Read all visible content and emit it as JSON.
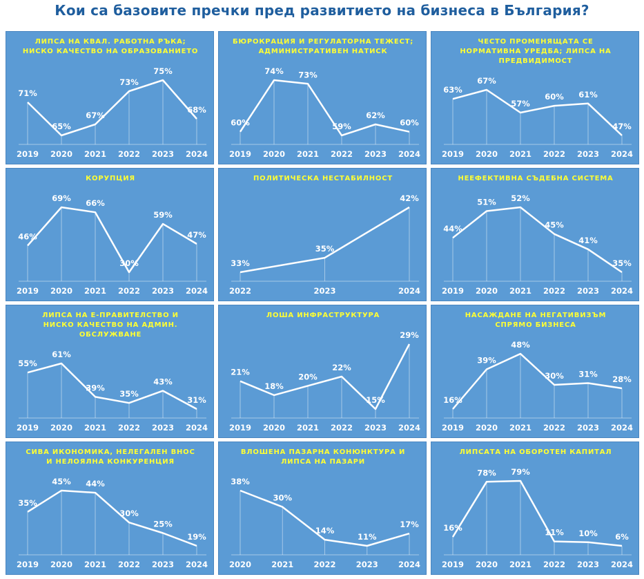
{
  "title": "Кои са базовите пречки пред развитието на бизнеса в България?",
  "colors": {
    "title": "#1f5e9e",
    "panel": "#5b9bd5",
    "chart_title": "#ffff33",
    "line": "#ffffff"
  },
  "chart_data": [
    {
      "type": "line",
      "title": "ЛИПСА НА КВАЛ. РАБОТНА РЪКА; НИСКО КАЧЕСТВО НА ОБРАЗОВАНИЕТО",
      "categories": [
        "2019",
        "2020",
        "2021",
        "2022",
        "2023",
        "2024"
      ],
      "values": [
        71,
        65,
        67,
        73,
        75,
        68
      ],
      "unit": "%"
    },
    {
      "type": "line",
      "title": "БЮРОКРАЦИЯ И РЕГУЛАТОРНА ТЕЖЕСТ; АДМИНИСТРАТИВЕН НАТИСК",
      "categories": [
        "2019",
        "2020",
        "2021",
        "2022",
        "2023",
        "2024"
      ],
      "values": [
        60,
        74,
        73,
        59,
        62,
        60
      ],
      "unit": "%"
    },
    {
      "type": "line",
      "title": "ЧЕСТО ПРОМЕНЯЩАТА СЕ НОРМАТИВНА УРЕДБА; ЛИПСА НА ПРЕДВИДИМОСТ",
      "categories": [
        "2019",
        "2020",
        "2021",
        "2022",
        "2023",
        "2024"
      ],
      "values": [
        63,
        67,
        57,
        60,
        61,
        47
      ],
      "unit": "%"
    },
    {
      "type": "line",
      "title": "КОРУПЦИЯ",
      "categories": [
        "2019",
        "2020",
        "2021",
        "2022",
        "2023",
        "2024"
      ],
      "values": [
        46,
        69,
        66,
        30,
        59,
        47
      ],
      "unit": "%"
    },
    {
      "type": "line",
      "title": "ПОЛИТИЧЕСКА НЕСТАБИЛНОСТ",
      "categories": [
        "2022",
        "2023",
        "2024"
      ],
      "values": [
        33,
        35,
        42
      ],
      "unit": "%"
    },
    {
      "type": "line",
      "title": "НЕЕФЕКТИВНА СЪДЕБНА СИСТЕМА",
      "categories": [
        "2019",
        "2020",
        "2021",
        "2022",
        "2023",
        "2024"
      ],
      "values": [
        44,
        51,
        52,
        45,
        41,
        35
      ],
      "unit": "%"
    },
    {
      "type": "line",
      "title": "ЛИПСА НА Е-ПРАВИТЕЛСТВО И НИСКО КАЧЕСТВО НА АДМИН. ОБСЛУЖВАНЕ",
      "categories": [
        "2019",
        "2020",
        "2021",
        "2022",
        "2023",
        "2024"
      ],
      "values": [
        55,
        61,
        39,
        35,
        43,
        31
      ],
      "unit": "%"
    },
    {
      "type": "line",
      "title": "ЛОША ИНФРАСТРУКТУРА",
      "categories": [
        "2019",
        "2020",
        "2021",
        "2022",
        "2023",
        "2024"
      ],
      "values": [
        21,
        18,
        20,
        22,
        15,
        29
      ],
      "unit": "%"
    },
    {
      "type": "line",
      "title": "НАСАЖДАНЕ НА НЕГАТИВИЗЪМ СПРЯМО БИЗНЕСА",
      "categories": [
        "2019",
        "2020",
        "2021",
        "2022",
        "2023",
        "2024"
      ],
      "values": [
        16,
        39,
        48,
        30,
        31,
        28
      ],
      "unit": "%"
    },
    {
      "type": "line",
      "title": "СИВА ИКОНОМИКА, НЕЛЕГАЛЕН ВНОС И НЕЛОЯЛНА КОНКУРЕНЦИЯ",
      "categories": [
        "2019",
        "2020",
        "2021",
        "2022",
        "2023",
        "2024"
      ],
      "values": [
        35,
        45,
        44,
        30,
        25,
        19
      ],
      "unit": "%"
    },
    {
      "type": "line",
      "title": "ВЛОШЕНА ПАЗАРНА КОНЮНКТУРА И ЛИПСА НА ПАЗАРИ",
      "categories": [
        "2020",
        "2021",
        "2022",
        "2023",
        "2024"
      ],
      "values": [
        38,
        30,
        14,
        11,
        17
      ],
      "unit": "%"
    },
    {
      "type": "line",
      "title": "ЛИПСАТА НА ОБОРОТЕН КАПИТАЛ",
      "categories": [
        "2019",
        "2020",
        "2021",
        "2022",
        "2023",
        "2024"
      ],
      "values": [
        16,
        78,
        79,
        11,
        10,
        6
      ],
      "unit": "%"
    }
  ]
}
